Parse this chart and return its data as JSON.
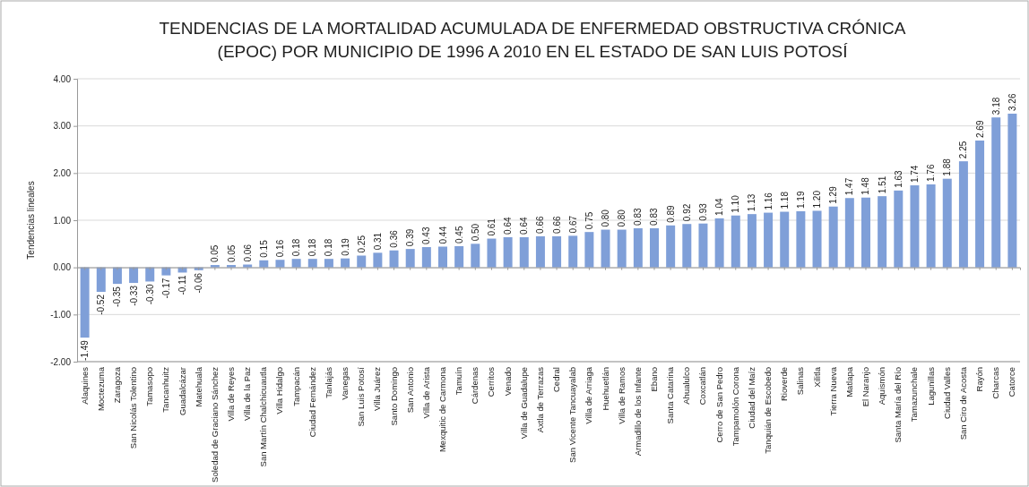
{
  "chart_data": {
    "type": "bar",
    "title": "TENDENCIAS DE LA MORTALIDAD ACUMULADA DE ENFERMEDAD OBSTRUCTIVA CRÓNICA (EPOC) POR MUNICIPIO DE 1996 A 2010 EN EL ESTADO DE SAN LUIS POTOSÍ",
    "ylabel": "Tendencias lineales",
    "categories": [
      "Alaquines",
      "Moctezuma",
      "Zaragoza",
      "San Nicolás Tolentino",
      "Tamasopo",
      "Tancanhuitz",
      "Guadalcázar",
      "Matehuala",
      "Soledad de Graciano Sánchez",
      "Villa de Reyes",
      "Villa de la Paz",
      "San Martín Chalchicuautla",
      "Villa Hidalgo",
      "Tampacán",
      "Ciudad Fernández",
      "Tanlajás",
      "Vanegas",
      "San Luis Potosí",
      "Villa Juárez",
      "Santo Domingo",
      "San Antonio",
      "Villa de Arista",
      "Mexquitic de Carmona",
      "Tamuín",
      "Cárdenas",
      "Cerritos",
      "Venado",
      "Villa de Guadalupe",
      "Axtla de Terrazas",
      "Cedral",
      "San Vicente Tancuayalab",
      "Villa de Arriaga",
      "Huehuetlán",
      "Villa de Ramos",
      "Armadillo de los Infante",
      "Ebano",
      "Santa Catarina",
      "Ahualulco",
      "Coxcatlán",
      "Cerro de San Pedro",
      "Tampamolón Corona",
      "Ciudad del Maíz",
      "Tanquián de Escobedo",
      "Rioverde",
      "Salinas",
      "Xilitla",
      "Tierra Nueva",
      "Matlapa",
      "El Naranjo",
      "Aquismón",
      "Santa María del Río",
      "Tamazunchale",
      "Lagunillas",
      "Ciudad Valles",
      "San Ciro de Acosta",
      "Rayón",
      "Charcas",
      "Catorce"
    ],
    "values": [
      -1.49,
      -0.52,
      -0.35,
      -0.33,
      -0.3,
      -0.17,
      -0.11,
      -0.06,
      0.05,
      0.05,
      0.06,
      0.15,
      0.16,
      0.18,
      0.18,
      0.18,
      0.19,
      0.25,
      0.31,
      0.36,
      0.39,
      0.43,
      0.44,
      0.45,
      0.5,
      0.61,
      0.64,
      0.64,
      0.66,
      0.66,
      0.67,
      0.75,
      0.8,
      0.8,
      0.83,
      0.83,
      0.89,
      0.92,
      0.93,
      1.04,
      1.1,
      1.13,
      1.16,
      1.18,
      1.19,
      1.2,
      1.29,
      1.47,
      1.48,
      1.51,
      1.63,
      1.74,
      1.76,
      1.88,
      2.25,
      2.69,
      3.18,
      3.26
    ],
    "value_labels": [
      "-1.49",
      "-0.52",
      "-0.35",
      "-0.33",
      "-0.30",
      "-0.17",
      "-0.11",
      "-0.06",
      "0.05",
      "0.05",
      "0.06",
      "0.15",
      "0.16",
      "0.18",
      "0.18",
      "0.18",
      "0.19",
      "0.25",
      "0.31",
      "0.36",
      "0.39",
      "0.43",
      "0.44",
      "0.45",
      "0.50",
      "0.61",
      "0.64",
      "0.64",
      "0.66",
      "0.66",
      "0.67",
      "0.75",
      "0.80",
      "0.80",
      "0.83",
      "0.83",
      "0.89",
      "0.92",
      "0.93",
      "1.04",
      "1.10",
      "1.13",
      "1.16",
      "1.18",
      "1.19",
      "1.20",
      "1.29",
      "1.47",
      "1.48",
      "1.51",
      "1.63",
      "1.74",
      "1.76",
      "1.88",
      "2.25",
      "2.69",
      "3.18",
      "3.26"
    ],
    "color": "#7f9fd8",
    "ylim": [
      -2,
      4
    ],
    "yticks": [
      {
        "value": -2,
        "label": "-2.00"
      },
      {
        "value": -1,
        "label": "-1.00"
      },
      {
        "value": 0,
        "label": "0.00"
      },
      {
        "value": 1,
        "label": "1.00"
      },
      {
        "value": 2,
        "label": "2.00"
      },
      {
        "value": 3,
        "label": "3.00"
      },
      {
        "value": 4,
        "label": "4.00"
      }
    ],
    "grid": "y"
  }
}
